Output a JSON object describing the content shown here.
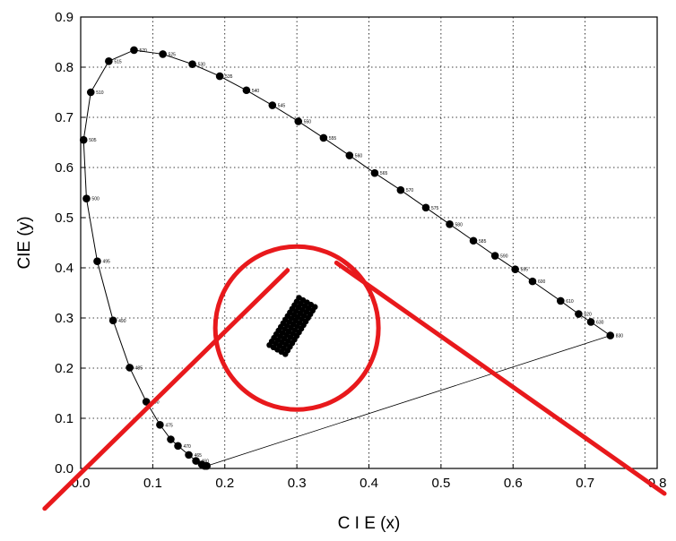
{
  "chart_data": {
    "type": "scatter",
    "title": "",
    "xlabel": "C I E (x)",
    "ylabel": "CIE (y)",
    "xlim": [
      0.0,
      0.8
    ],
    "ylim": [
      0.0,
      0.9
    ],
    "xticks": [
      "0.0",
      "0.1",
      "0.2",
      "0.3",
      "0.4",
      "0.5",
      "0.6",
      "0.7",
      "0.8"
    ],
    "yticks": [
      "0.0",
      "0.1",
      "0.2",
      "0.3",
      "0.4",
      "0.5",
      "0.6",
      "0.7",
      "0.8",
      "0.9"
    ],
    "grid": true,
    "colors": {
      "marks": "#000000",
      "annotation": "#e8191c"
    },
    "series": [
      {
        "kind": "spectral-locus",
        "points": [
          {
            "label": "",
            "x": 0.175,
            "y": 0.005
          },
          {
            "label": "",
            "x": 0.172,
            "y": 0.005
          },
          {
            "label": "",
            "x": 0.168,
            "y": 0.008
          },
          {
            "label": "460",
            "x": 0.16,
            "y": 0.015
          },
          {
            "label": "465",
            "x": 0.15,
            "y": 0.027
          },
          {
            "label": "470",
            "x": 0.135,
            "y": 0.045
          },
          {
            "label": "",
            "x": 0.125,
            "y": 0.058
          },
          {
            "label": "475",
            "x": 0.11,
            "y": 0.087
          },
          {
            "label": "480",
            "x": 0.091,
            "y": 0.133
          },
          {
            "label": "485",
            "x": 0.068,
            "y": 0.201
          },
          {
            "label": "490",
            "x": 0.045,
            "y": 0.295
          },
          {
            "label": "495",
            "x": 0.023,
            "y": 0.413
          },
          {
            "label": "500",
            "x": 0.008,
            "y": 0.538
          },
          {
            "label": "505",
            "x": 0.004,
            "y": 0.655
          },
          {
            "label": "510",
            "x": 0.014,
            "y": 0.75
          },
          {
            "label": "515",
            "x": 0.039,
            "y": 0.812
          },
          {
            "label": "520",
            "x": 0.074,
            "y": 0.834
          },
          {
            "label": "525",
            "x": 0.114,
            "y": 0.826
          },
          {
            "label": "530",
            "x": 0.155,
            "y": 0.806
          },
          {
            "label": "535",
            "x": 0.193,
            "y": 0.782
          },
          {
            "label": "540",
            "x": 0.23,
            "y": 0.754
          },
          {
            "label": "545",
            "x": 0.266,
            "y": 0.724
          },
          {
            "label": "550",
            "x": 0.302,
            "y": 0.692
          },
          {
            "label": "555",
            "x": 0.337,
            "y": 0.659
          },
          {
            "label": "560",
            "x": 0.373,
            "y": 0.624
          },
          {
            "label": "565",
            "x": 0.408,
            "y": 0.589
          },
          {
            "label": "570",
            "x": 0.444,
            "y": 0.555
          },
          {
            "label": "575",
            "x": 0.479,
            "y": 0.52
          },
          {
            "label": "580",
            "x": 0.512,
            "y": 0.487
          },
          {
            "label": "585",
            "x": 0.545,
            "y": 0.454
          },
          {
            "label": "590",
            "x": 0.575,
            "y": 0.424
          },
          {
            "label": "595",
            "x": 0.603,
            "y": 0.397
          },
          {
            "label": "600",
            "x": 0.627,
            "y": 0.373
          },
          {
            "label": "610",
            "x": 0.666,
            "y": 0.334
          },
          {
            "label": "620",
            "x": 0.691,
            "y": 0.308
          },
          {
            "label": "630",
            "x": 0.708,
            "y": 0.292
          },
          {
            "label": "830",
            "x": 0.735,
            "y": 0.265
          }
        ],
        "purple_line": [
          {
            "x": 0.735,
            "y": 0.265
          },
          {
            "x": 0.175,
            "y": 0.005
          }
        ]
      },
      {
        "kind": "sample-cluster",
        "x_range": [
          0.262,
          0.325
        ],
        "y_range": [
          0.228,
          0.34
        ]
      }
    ],
    "annotations": [
      {
        "type": "circle",
        "center": {
          "x": 0.3,
          "y": 0.28
        },
        "shape": "magnifier-circle"
      },
      {
        "type": "line",
        "from": {
          "x": 0.287,
          "y": 0.395
        },
        "to": {
          "x": -0.05,
          "y": -0.08
        }
      },
      {
        "type": "line",
        "from": {
          "x": 0.355,
          "y": 0.41
        },
        "to": {
          "x": 0.81,
          "y": -0.05
        }
      }
    ]
  }
}
